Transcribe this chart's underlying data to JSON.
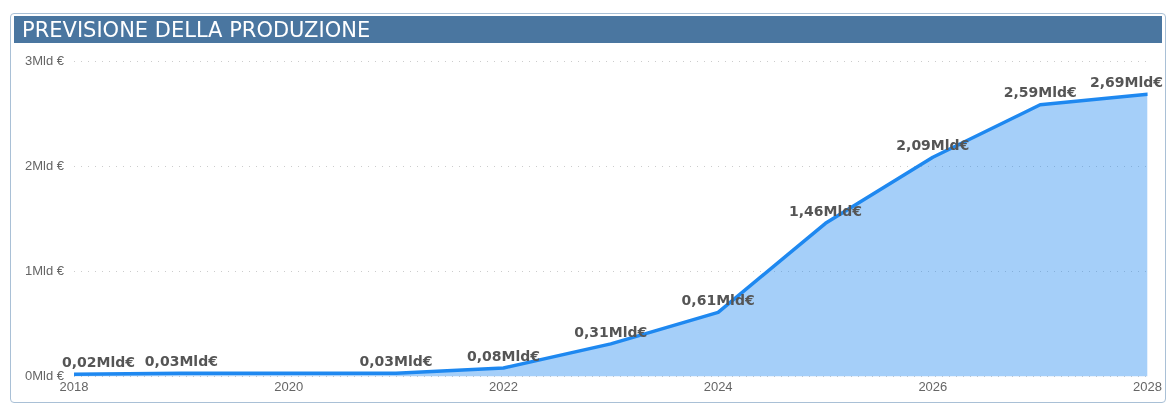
{
  "chart_data": {
    "type": "area",
    "title": "PREVISIONE DELLA PRODUZIONE",
    "x": [
      2018,
      2019,
      2021,
      2022,
      2023,
      2024,
      2025,
      2026,
      2027,
      2028
    ],
    "series": [
      {
        "color": "#1e88f0",
        "values": [
          0.02,
          0.03,
          0.03,
          0.08,
          0.31,
          0.61,
          1.46,
          2.09,
          2.59,
          2.69
        ],
        "value_labels": [
          "0,02Mld€",
          "0,03Mld€",
          "0,03Mld€",
          "0,08Mld€",
          "0,31Mld€",
          "0,61Mld€",
          "1,46Mld€",
          "2,09Mld€",
          "2,59Mld€",
          "2,69Mld€"
        ]
      }
    ],
    "xlim": [
      2018,
      2028
    ],
    "xticks": [
      2018,
      2020,
      2022,
      2024,
      2026,
      2028
    ],
    "ylim": [
      0,
      3
    ],
    "yticks": [
      {
        "value": 0,
        "label": "0Mld €"
      },
      {
        "value": 1,
        "label": "1Mld €"
      },
      {
        "value": 2,
        "label": "2Mld €"
      },
      {
        "value": 3,
        "label": "3Mld €"
      }
    ],
    "grid": "y",
    "legend": false,
    "marker": "none",
    "line_style": "solid"
  }
}
